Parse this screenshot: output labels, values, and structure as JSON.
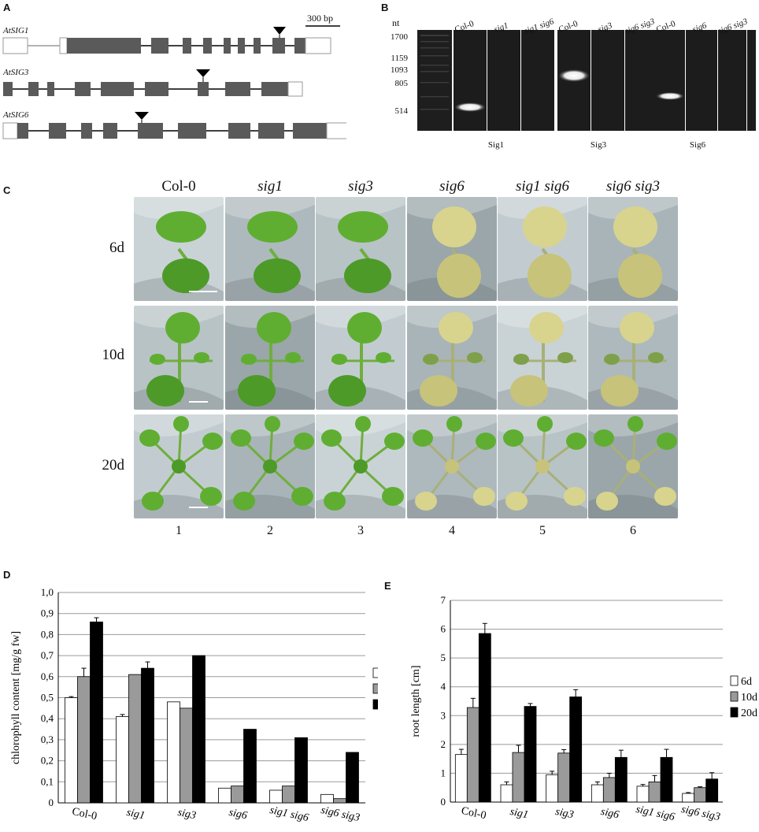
{
  "panels": {
    "A": "A",
    "B": "B",
    "C": "C",
    "D": "D",
    "E": "E"
  },
  "panel_a": {
    "scale_label": "300 bp",
    "genes": [
      "AtSIG1",
      "AtSIG3",
      "AtSIG6"
    ]
  },
  "panel_b": {
    "nt_label": "nt",
    "ladder": [
      "1700",
      "1159",
      "1093",
      "805",
      "514"
    ],
    "groups": [
      {
        "label": "Sig1",
        "lanes": [
          "Col-0",
          "sig1",
          "sig1 sig6"
        ]
      },
      {
        "label": "Sig3",
        "lanes": [
          "Col-0",
          "sig3",
          "sig6 sig3"
        ]
      },
      {
        "label": "Sig6",
        "lanes": [
          "Col-0",
          "sig6",
          "sig6 sig3"
        ]
      }
    ]
  },
  "panel_c": {
    "columns": [
      "Col-0",
      "sig1",
      "sig3",
      "sig6",
      "sig1 sig6",
      "sig6 sig3"
    ],
    "rows": [
      "6d",
      "10d",
      "20d"
    ],
    "numbers": [
      "1",
      "2",
      "3",
      "4",
      "5",
      "6"
    ]
  },
  "chart_data": [
    {
      "type": "bar",
      "panel": "D",
      "categories": [
        "Col-0",
        "sig1",
        "sig3",
        "sig6",
        "sig1 sig6",
        "sig6 sig3"
      ],
      "series": [
        {
          "name": "6d",
          "values": [
            0.5,
            0.41,
            0.48,
            0.07,
            0.06,
            0.04
          ],
          "errors": [
            0.005,
            0.01,
            0.0,
            0.0,
            0.0,
            0.0
          ],
          "color": "#ffffff"
        },
        {
          "name": "10d",
          "values": [
            0.6,
            0.61,
            0.45,
            0.08,
            0.08,
            0.02
          ],
          "errors": [
            0.04,
            0.0,
            0.0,
            0.0,
            0.0,
            0.0
          ],
          "color": "#9a9a9a"
        },
        {
          "name": "20d",
          "values": [
            0.86,
            0.64,
            0.7,
            0.35,
            0.31,
            0.24
          ],
          "errors": [
            0.02,
            0.03,
            0.0,
            0.0,
            0.0,
            0.0
          ],
          "color": "#000000"
        }
      ],
      "ylabel": "chlorophyll content [mg/g fw]",
      "ylim": [
        0,
        1.0
      ],
      "yticks": [
        "0",
        "0,1",
        "0,2",
        "0,3",
        "0,4",
        "0,5",
        "0,6",
        "0,7",
        "0,8",
        "0,9",
        "1,0"
      ],
      "grid": true,
      "legend": "right"
    },
    {
      "type": "bar",
      "panel": "E",
      "categories": [
        "Col-0",
        "sig1",
        "sig3",
        "sig6",
        "sig1 sig6",
        "sig6 sig3"
      ],
      "series": [
        {
          "name": "6d",
          "values": [
            1.65,
            0.6,
            0.95,
            0.6,
            0.55,
            0.3
          ],
          "errors": [
            0.18,
            0.1,
            0.12,
            0.1,
            0.06,
            0.03
          ],
          "color": "#ffffff"
        },
        {
          "name": "10d",
          "values": [
            3.28,
            1.72,
            1.7,
            0.85,
            0.7,
            0.5
          ],
          "errors": [
            0.32,
            0.25,
            0.12,
            0.15,
            0.22,
            0.03
          ],
          "color": "#9a9a9a"
        },
        {
          "name": "20d",
          "values": [
            5.85,
            3.32,
            3.65,
            1.55,
            1.55,
            0.8
          ],
          "errors": [
            0.35,
            0.1,
            0.25,
            0.25,
            0.28,
            0.22
          ],
          "color": "#000000"
        }
      ],
      "ylabel": "root length [cm]",
      "ylim": [
        0,
        7
      ],
      "yticks": [
        "0",
        "1",
        "2",
        "3",
        "4",
        "5",
        "6",
        "7"
      ],
      "grid": true,
      "legend": "right"
    }
  ],
  "colors": {
    "exon": "#5a5a5a",
    "leaf_green": "#5fae32",
    "leaf_pale": "#d8d48e",
    "gel_bg": "#1c1c1c"
  }
}
